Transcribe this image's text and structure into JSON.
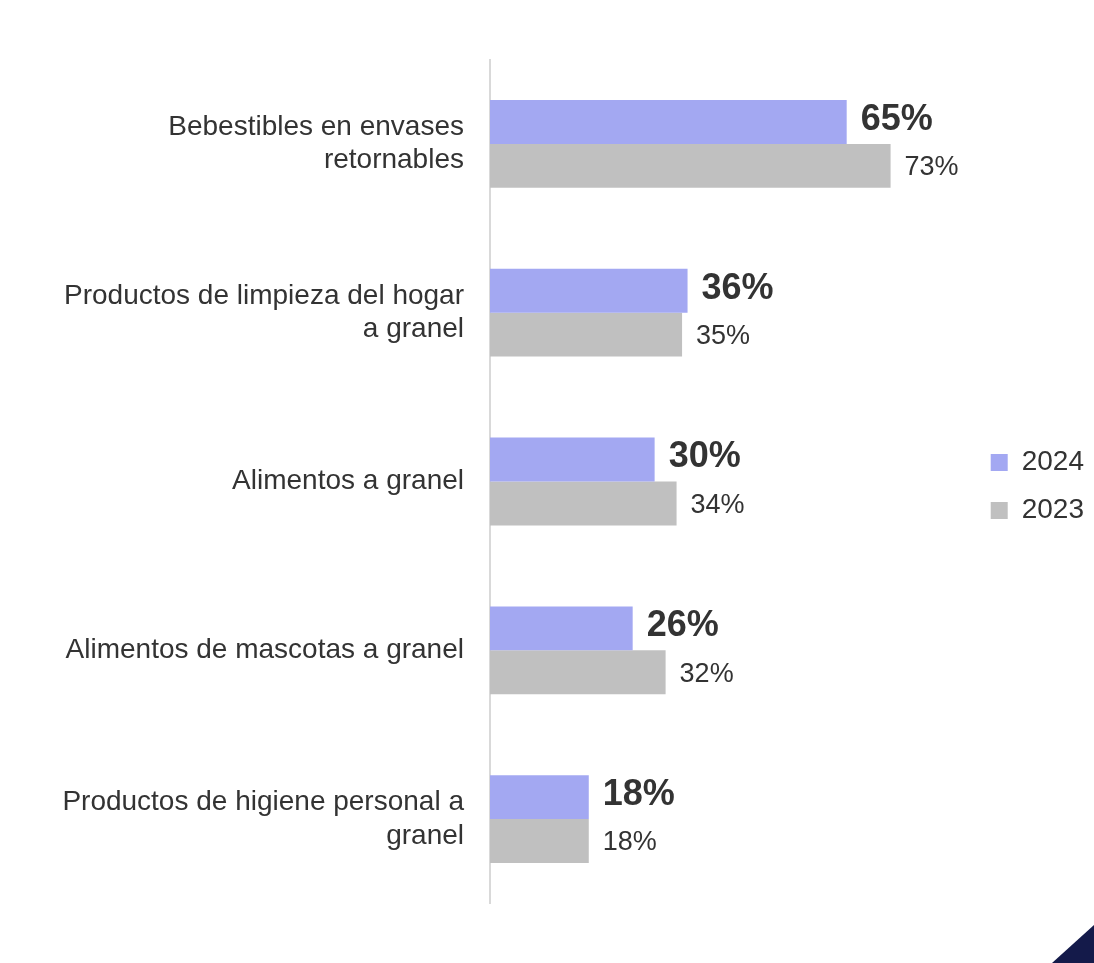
{
  "chart_data": {
    "type": "bar",
    "orientation": "horizontal",
    "legend": "right",
    "categories": [
      "Bebestibles en envases retornables",
      "Productos de limpieza del hogar a granel",
      "Alimentos a granel",
      "Alimentos de mascotas a granel",
      "Productos de higiene personal a granel"
    ],
    "series": [
      {
        "name": "2024",
        "color": "#a3a8f2",
        "values": [
          65,
          36,
          30,
          26,
          18
        ],
        "value_labels": [
          "65%",
          "36%",
          "30%",
          "26%",
          "18%"
        ]
      },
      {
        "name": "2023",
        "color": "#c0c0c0",
        "values": [
          73,
          35,
          34,
          32,
          18
        ],
        "value_labels": [
          "73%",
          "35%",
          "34%",
          "32%",
          "18%"
        ]
      }
    ]
  }
}
